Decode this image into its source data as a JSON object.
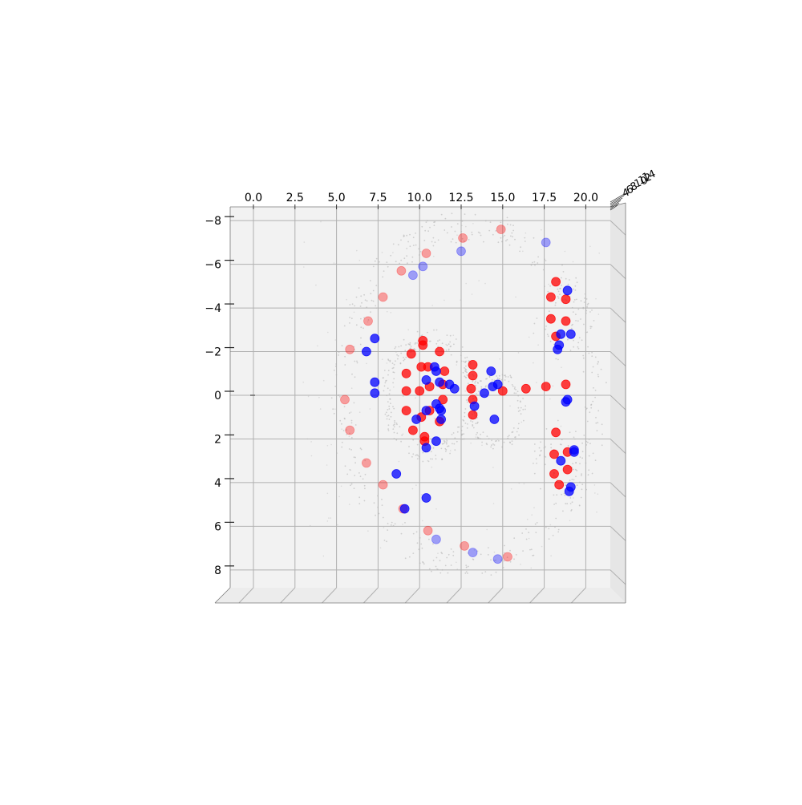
{
  "chart_data": {
    "type": "scatter",
    "projection": "3d",
    "view": "top-down",
    "title": "",
    "xlabel": "",
    "ylabel": "",
    "zlabel": "",
    "xlim": [
      -1.5,
      21.5
    ],
    "ylim": [
      -8.5,
      8.9
    ],
    "grid": true,
    "legend": false,
    "x_ticks": [
      0.0,
      2.5,
      5.0,
      7.5,
      10.0,
      12.5,
      15.0,
      17.5,
      20.0
    ],
    "x_tick_labels": [
      "0.0",
      "2.5",
      "5.0",
      "7.5",
      "10.0",
      "12.5",
      "15.0",
      "17.5",
      "20.0"
    ],
    "y_ticks": [
      -8,
      -6,
      -4,
      -2,
      0,
      2,
      4,
      6,
      8
    ],
    "y_tick_labels": [
      "−8",
      "−6",
      "−4",
      "−2",
      "0",
      "2",
      "4",
      "6",
      "8"
    ],
    "z_tick_labels": [
      "4",
      "6",
      "8",
      "10",
      "12",
      "14"
    ],
    "colors": {
      "red": "#ff0000",
      "blue": "#0000ff",
      "background_points": "#b0b0b0",
      "pane": "#f2f2f2",
      "grid": "#b0b0b0"
    },
    "background_point_density": "dense gray point cloud forming an outer ring, an inner ring and a small right ring",
    "series": [
      {
        "color": "#ff0000",
        "points": [
          [
            12.6,
            -7.2,
            0.4
          ],
          [
            14.9,
            -7.6,
            0.4
          ],
          [
            10.4,
            -6.5,
            0.4
          ],
          [
            8.9,
            -5.7,
            0.4
          ],
          [
            7.8,
            -4.5,
            0.4
          ],
          [
            6.9,
            -3.4,
            0.4
          ],
          [
            5.8,
            -2.1,
            0.4
          ],
          [
            5.5,
            0.2,
            0.4
          ],
          [
            5.8,
            1.6,
            0.4
          ],
          [
            6.8,
            3.1,
            0.4
          ],
          [
            7.8,
            4.1,
            0.4
          ],
          [
            9.0,
            5.2,
            0.4
          ],
          [
            10.5,
            6.2,
            0.4
          ],
          [
            12.7,
            6.9,
            0.4
          ],
          [
            15.3,
            7.4,
            0.4
          ],
          [
            10.2,
            -2.5,
            1.0
          ],
          [
            10.2,
            -2.3,
            1.0
          ],
          [
            9.5,
            -1.9,
            1.0
          ],
          [
            11.2,
            -2.0,
            1.0
          ],
          [
            10.1,
            -1.3,
            1.0
          ],
          [
            10.5,
            -1.3,
            1.0
          ],
          [
            11.5,
            -1.1,
            1.0
          ],
          [
            9.2,
            -1.0,
            1.0
          ],
          [
            10.6,
            -0.4,
            1.0
          ],
          [
            9.2,
            -0.2,
            1.0
          ],
          [
            10.0,
            -0.2,
            1.0
          ],
          [
            11.4,
            -0.5,
            1.0
          ],
          [
            11.4,
            0.2,
            1.0
          ],
          [
            9.2,
            0.7,
            1.0
          ],
          [
            10.6,
            0.7,
            1.0
          ],
          [
            10.1,
            1.0,
            1.0
          ],
          [
            11.2,
            1.2,
            1.0
          ],
          [
            9.6,
            1.6,
            1.0
          ],
          [
            10.3,
            1.9,
            1.0
          ],
          [
            10.3,
            2.1,
            1.0
          ],
          [
            13.2,
            -1.4,
            1.0
          ],
          [
            13.2,
            -0.9,
            1.0
          ],
          [
            13.1,
            -0.3,
            1.0
          ],
          [
            13.2,
            0.2,
            1.0
          ],
          [
            13.2,
            0.9,
            1.0
          ],
          [
            15.0,
            -0.2,
            1.0
          ],
          [
            16.4,
            -0.3,
            1.0
          ],
          [
            17.6,
            -0.4,
            1.0
          ],
          [
            18.2,
            -5.2,
            1.0
          ],
          [
            17.9,
            -4.5,
            1.0
          ],
          [
            18.8,
            -4.4,
            1.0
          ],
          [
            17.9,
            -3.5,
            1.0
          ],
          [
            18.8,
            -3.4,
            1.0
          ],
          [
            18.2,
            -2.7,
            1.0
          ],
          [
            18.8,
            -0.5,
            1.0
          ],
          [
            18.2,
            1.7,
            1.0
          ],
          [
            18.1,
            2.7,
            1.0
          ],
          [
            18.9,
            2.6,
            1.0
          ],
          [
            18.9,
            3.4,
            1.0
          ],
          [
            18.1,
            3.6,
            1.0
          ],
          [
            18.4,
            4.1,
            1.0
          ]
        ]
      },
      {
        "color": "#0000ff",
        "points": [
          [
            17.6,
            -7.0,
            0.4
          ],
          [
            12.5,
            -6.6,
            0.4
          ],
          [
            10.2,
            -5.9,
            0.4
          ],
          [
            9.6,
            -5.5,
            0.4
          ],
          [
            11.0,
            6.6,
            0.4
          ],
          [
            13.2,
            7.2,
            0.4
          ],
          [
            14.7,
            7.5,
            0.4
          ],
          [
            7.3,
            -2.6,
            1.0
          ],
          [
            6.8,
            -2.0,
            1.0
          ],
          [
            7.3,
            -0.6,
            1.0
          ],
          [
            7.3,
            -0.1,
            1.0
          ],
          [
            8.6,
            3.6,
            1.0
          ],
          [
            10.4,
            4.7,
            1.0
          ],
          [
            9.1,
            5.2,
            1.0
          ],
          [
            10.9,
            -1.3,
            1.0
          ],
          [
            11.0,
            -1.1,
            1.0
          ],
          [
            10.4,
            -0.7,
            1.0
          ],
          [
            11.2,
            -0.6,
            1.0
          ],
          [
            11.8,
            -0.5,
            1.0
          ],
          [
            12.1,
            -0.3,
            1.0
          ],
          [
            11.0,
            0.4,
            1.0
          ],
          [
            11.2,
            0.6,
            1.0
          ],
          [
            10.4,
            0.7,
            1.0
          ],
          [
            11.3,
            0.7,
            1.0
          ],
          [
            11.3,
            1.1,
            1.0
          ],
          [
            9.8,
            1.1,
            1.0
          ],
          [
            11.0,
            2.1,
            1.0
          ],
          [
            10.4,
            2.4,
            1.0
          ],
          [
            14.3,
            -1.1,
            1.0
          ],
          [
            14.4,
            -0.4,
            1.0
          ],
          [
            14.7,
            -0.5,
            1.0
          ],
          [
            13.9,
            -0.1,
            1.0
          ],
          [
            13.3,
            0.5,
            1.0
          ],
          [
            14.5,
            1.1,
            1.0
          ],
          [
            18.9,
            -4.8,
            1.0
          ],
          [
            18.5,
            -2.8,
            1.0
          ],
          [
            19.1,
            -2.8,
            1.0
          ],
          [
            18.4,
            -2.3,
            1.0
          ],
          [
            18.3,
            -2.1,
            1.0
          ],
          [
            18.9,
            0.2,
            1.0
          ],
          [
            18.8,
            0.3,
            1.0
          ],
          [
            19.3,
            2.5,
            1.0
          ],
          [
            19.3,
            2.6,
            1.0
          ],
          [
            18.5,
            3.0,
            1.0
          ],
          [
            19.1,
            4.2,
            1.0
          ],
          [
            19.0,
            4.4,
            1.0
          ]
        ]
      }
    ]
  }
}
